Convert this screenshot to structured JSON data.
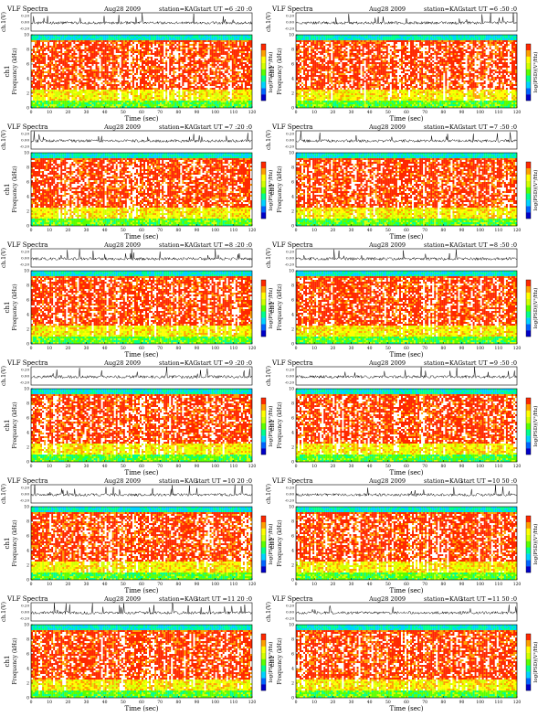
{
  "colors": {
    "background": "#ffffff",
    "trace": "#000000",
    "colorscale": [
      "#0000c8",
      "#0064ff",
      "#00d2ff",
      "#00ff8c",
      "#5aff00",
      "#d2ff00",
      "#ffff00",
      "#ffa000",
      "#ff2800",
      "#ffffff"
    ]
  },
  "chart_data": [
    {
      "type": "heatmap",
      "title_left": "VLF Spectra",
      "title_date": "Aug28 2009",
      "title_station": "station=KAG",
      "title_start": "start UT =6 :20 :0",
      "top_ylabel": "ch.1(V)",
      "top_yticks": [
        "0.20",
        "0.00",
        "-0.20"
      ],
      "ylabel_ch": "ch1",
      "ylabel": "Frequency (kHz)",
      "yticks": [
        0,
        2,
        4,
        6,
        8,
        10
      ],
      "ylim": [
        0,
        10
      ],
      "xlabel": "Time (sec)",
      "xticks": [
        0,
        10,
        20,
        30,
        40,
        50,
        60,
        70,
        80,
        90,
        100,
        110,
        120
      ],
      "xlim": [
        0,
        120
      ],
      "colorbar_label": "log(PSD)(V²/Hz)"
    },
    {
      "type": "heatmap",
      "title_left": "VLF Spectra",
      "title_date": "Aug28 2009",
      "title_station": "station=KAG",
      "title_start": "start UT =6 :50 :0",
      "top_ylabel": "ch.1(V)",
      "top_yticks": [
        "0.20",
        "0.00",
        "-0.20"
      ],
      "ylabel_ch": "ch1",
      "ylabel": "Frequency (kHz)",
      "yticks": [
        0,
        2,
        4,
        6,
        8,
        10
      ],
      "ylim": [
        0,
        10
      ],
      "xlabel": "Time (sec)",
      "xticks": [
        0,
        10,
        20,
        30,
        40,
        50,
        60,
        70,
        80,
        90,
        100,
        110,
        120
      ],
      "xlim": [
        0,
        120
      ],
      "colorbar_label": "log(PSD)(V²/Hz)"
    },
    {
      "type": "heatmap",
      "title_left": "VLF Spectra",
      "title_date": "Aug28 2009",
      "title_station": "station=KAG",
      "title_start": "start UT =7 :20 :0",
      "top_ylabel": "ch.1(V)",
      "top_yticks": [
        "0.20",
        "0.00",
        "-0.20"
      ],
      "ylabel_ch": "ch1",
      "ylabel": "Frequency (kHz)",
      "yticks": [
        0,
        2,
        4,
        6,
        8,
        10
      ],
      "ylim": [
        0,
        10
      ],
      "xlabel": "Time (sec)",
      "xticks": [
        0,
        10,
        20,
        30,
        40,
        50,
        60,
        70,
        80,
        90,
        100,
        110,
        120
      ],
      "xlim": [
        0,
        120
      ],
      "colorbar_label": "log(PSD)(V²/Hz)"
    },
    {
      "type": "heatmap",
      "title_left": "VLF Spectra",
      "title_date": "Aug28 2009",
      "title_station": "station=KAG",
      "title_start": "start UT =7 :50 :0",
      "top_ylabel": "ch.1(V)",
      "top_yticks": [
        "0.20",
        "0.00",
        "-0.20"
      ],
      "ylabel_ch": "ch1",
      "ylabel": "Frequency (kHz)",
      "yticks": [
        0,
        2,
        4,
        6,
        8,
        10
      ],
      "ylim": [
        0,
        10
      ],
      "xlabel": "Time (sec)",
      "xticks": [
        0,
        10,
        20,
        30,
        40,
        50,
        60,
        70,
        80,
        90,
        100,
        110,
        120
      ],
      "xlim": [
        0,
        120
      ],
      "colorbar_label": "log(PSD)(V²/Hz)"
    },
    {
      "type": "heatmap",
      "title_left": "VLF Spectra",
      "title_date": "Aug28 2009",
      "title_station": "station=KAG",
      "title_start": "start UT =8 :20 :0",
      "top_ylabel": "ch.1(V)",
      "top_yticks": [
        "0.20",
        "0.00",
        "-0.20"
      ],
      "ylabel_ch": "ch1",
      "ylabel": "Frequency (kHz)",
      "yticks": [
        0,
        2,
        4,
        6,
        8,
        10
      ],
      "ylim": [
        0,
        10
      ],
      "xlabel": "Time (sec)",
      "xticks": [
        0,
        10,
        20,
        30,
        40,
        50,
        60,
        70,
        80,
        90,
        100,
        110,
        120
      ],
      "xlim": [
        0,
        120
      ],
      "colorbar_label": "log(PSD)(V²/Hz)"
    },
    {
      "type": "heatmap",
      "title_left": "VLF Spectra",
      "title_date": "Aug28 2009",
      "title_station": "station=KAG",
      "title_start": "start UT =8 :50 :0",
      "top_ylabel": "ch.1(V)",
      "top_yticks": [
        "0.20",
        "0.00",
        "-0.20"
      ],
      "ylabel_ch": "ch1",
      "ylabel": "Frequency (kHz)",
      "yticks": [
        0,
        2,
        4,
        6,
        8,
        10
      ],
      "ylim": [
        0,
        10
      ],
      "xlabel": "Time (sec)",
      "xticks": [
        0,
        10,
        20,
        30,
        40,
        50,
        60,
        70,
        80,
        90,
        100,
        110,
        120
      ],
      "xlim": [
        0,
        120
      ],
      "colorbar_label": "log(PSD)(V²/Hz)"
    },
    {
      "type": "heatmap",
      "title_left": "VLF Spectra",
      "title_date": "Aug28 2009",
      "title_station": "station=KAG",
      "title_start": "start UT =9 :20 :0",
      "top_ylabel": "ch.1(V)",
      "top_yticks": [
        "0.20",
        "0.00",
        "-0.20"
      ],
      "ylabel_ch": "ch1",
      "ylabel": "Frequency (kHz)",
      "yticks": [
        0,
        2,
        4,
        6,
        8,
        10
      ],
      "ylim": [
        0,
        10
      ],
      "xlabel": "Time (sec)",
      "xticks": [
        0,
        10,
        20,
        30,
        40,
        50,
        60,
        70,
        80,
        90,
        100,
        110,
        120
      ],
      "xlim": [
        0,
        120
      ],
      "colorbar_label": "log(PSD)(V²/Hz)"
    },
    {
      "type": "heatmap",
      "title_left": "VLF Spectra",
      "title_date": "Aug28 2009",
      "title_station": "station=KAG",
      "title_start": "start UT =9 :50 :0",
      "top_ylabel": "ch.1(V)",
      "top_yticks": [
        "0.20",
        "0.00",
        "-0.20"
      ],
      "ylabel_ch": "ch1",
      "ylabel": "Frequency (kHz)",
      "yticks": [
        0,
        2,
        4,
        6,
        8,
        10
      ],
      "ylim": [
        0,
        10
      ],
      "xlabel": "Time (sec)",
      "xticks": [
        0,
        10,
        20,
        30,
        40,
        50,
        60,
        70,
        80,
        90,
        100,
        110,
        120
      ],
      "xlim": [
        0,
        120
      ],
      "colorbar_label": "log(PSD)(V²/Hz)"
    },
    {
      "type": "heatmap",
      "title_left": "VLF Spectra",
      "title_date": "Aug28 2009",
      "title_station": "station=KAG",
      "title_start": "start UT =10 20 :0",
      "top_ylabel": "ch.1(V)",
      "top_yticks": [
        "0.20",
        "0.00",
        "-0.20"
      ],
      "ylabel_ch": "ch1",
      "ylabel": "Frequency (kHz)",
      "yticks": [
        0,
        2,
        4,
        6,
        8,
        10
      ],
      "ylim": [
        0,
        10
      ],
      "xlabel": "Time (sec)",
      "xticks": [
        0,
        10,
        20,
        30,
        40,
        50,
        60,
        70,
        80,
        90,
        100,
        110,
        120
      ],
      "xlim": [
        0,
        120
      ],
      "colorbar_label": "log(PSD)(V²/Hz)"
    },
    {
      "type": "heatmap",
      "title_left": "VLF Spectra",
      "title_date": "Aug28 2009",
      "title_station": "station=KAG",
      "title_start": "start UT =10 50 :0",
      "top_ylabel": "ch.1(V)",
      "top_yticks": [
        "0.20",
        "0.00",
        "-0.20"
      ],
      "ylabel_ch": "ch1",
      "ylabel": "Frequency (kHz)",
      "yticks": [
        0,
        2,
        4,
        6,
        8,
        10
      ],
      "ylim": [
        0,
        10
      ],
      "xlabel": "Time (sec)",
      "xticks": [
        0,
        10,
        20,
        30,
        40,
        50,
        60,
        70,
        80,
        90,
        100,
        110,
        120
      ],
      "xlim": [
        0,
        120
      ],
      "colorbar_label": "log(PSD)(V²/Hz)"
    },
    {
      "type": "heatmap",
      "title_left": "VLF Spectra",
      "title_date": "Aug28 2009",
      "title_station": "station=KAG",
      "title_start": "start UT =11 20 :0",
      "top_ylabel": "ch.1(V)",
      "top_yticks": [
        "0.20",
        "0.00",
        "-0.20"
      ],
      "ylabel_ch": "ch1",
      "ylabel": "Frequency (kHz)",
      "yticks": [
        0,
        2,
        4,
        6,
        8,
        10
      ],
      "ylim": [
        0,
        10
      ],
      "xlabel": "Time (sec)",
      "xticks": [
        0,
        10,
        20,
        30,
        40,
        50,
        60,
        70,
        80,
        90,
        100,
        110,
        120
      ],
      "xlim": [
        0,
        120
      ],
      "colorbar_label": "log(PSD)(V²/Hz)"
    },
    {
      "type": "heatmap",
      "title_left": "VLF Spectra",
      "title_date": "Aug28 2009",
      "title_station": "station=KAG",
      "title_start": "start UT =11 50 :0",
      "top_ylabel": "ch.1(V)",
      "top_yticks": [
        "0.20",
        "0.00",
        "-0.20"
      ],
      "ylabel_ch": "ch1",
      "ylabel": "Frequency (kHz)",
      "yticks": [
        0,
        2,
        4,
        6,
        8,
        10
      ],
      "ylim": [
        0,
        10
      ],
      "xlabel": "Time (sec)",
      "xticks": [
        0,
        10,
        20,
        30,
        40,
        50,
        60,
        70,
        80,
        90,
        100,
        110,
        120
      ],
      "xlim": [
        0,
        120
      ],
      "colorbar_label": "log(PSD)(V²/Hz)"
    }
  ]
}
